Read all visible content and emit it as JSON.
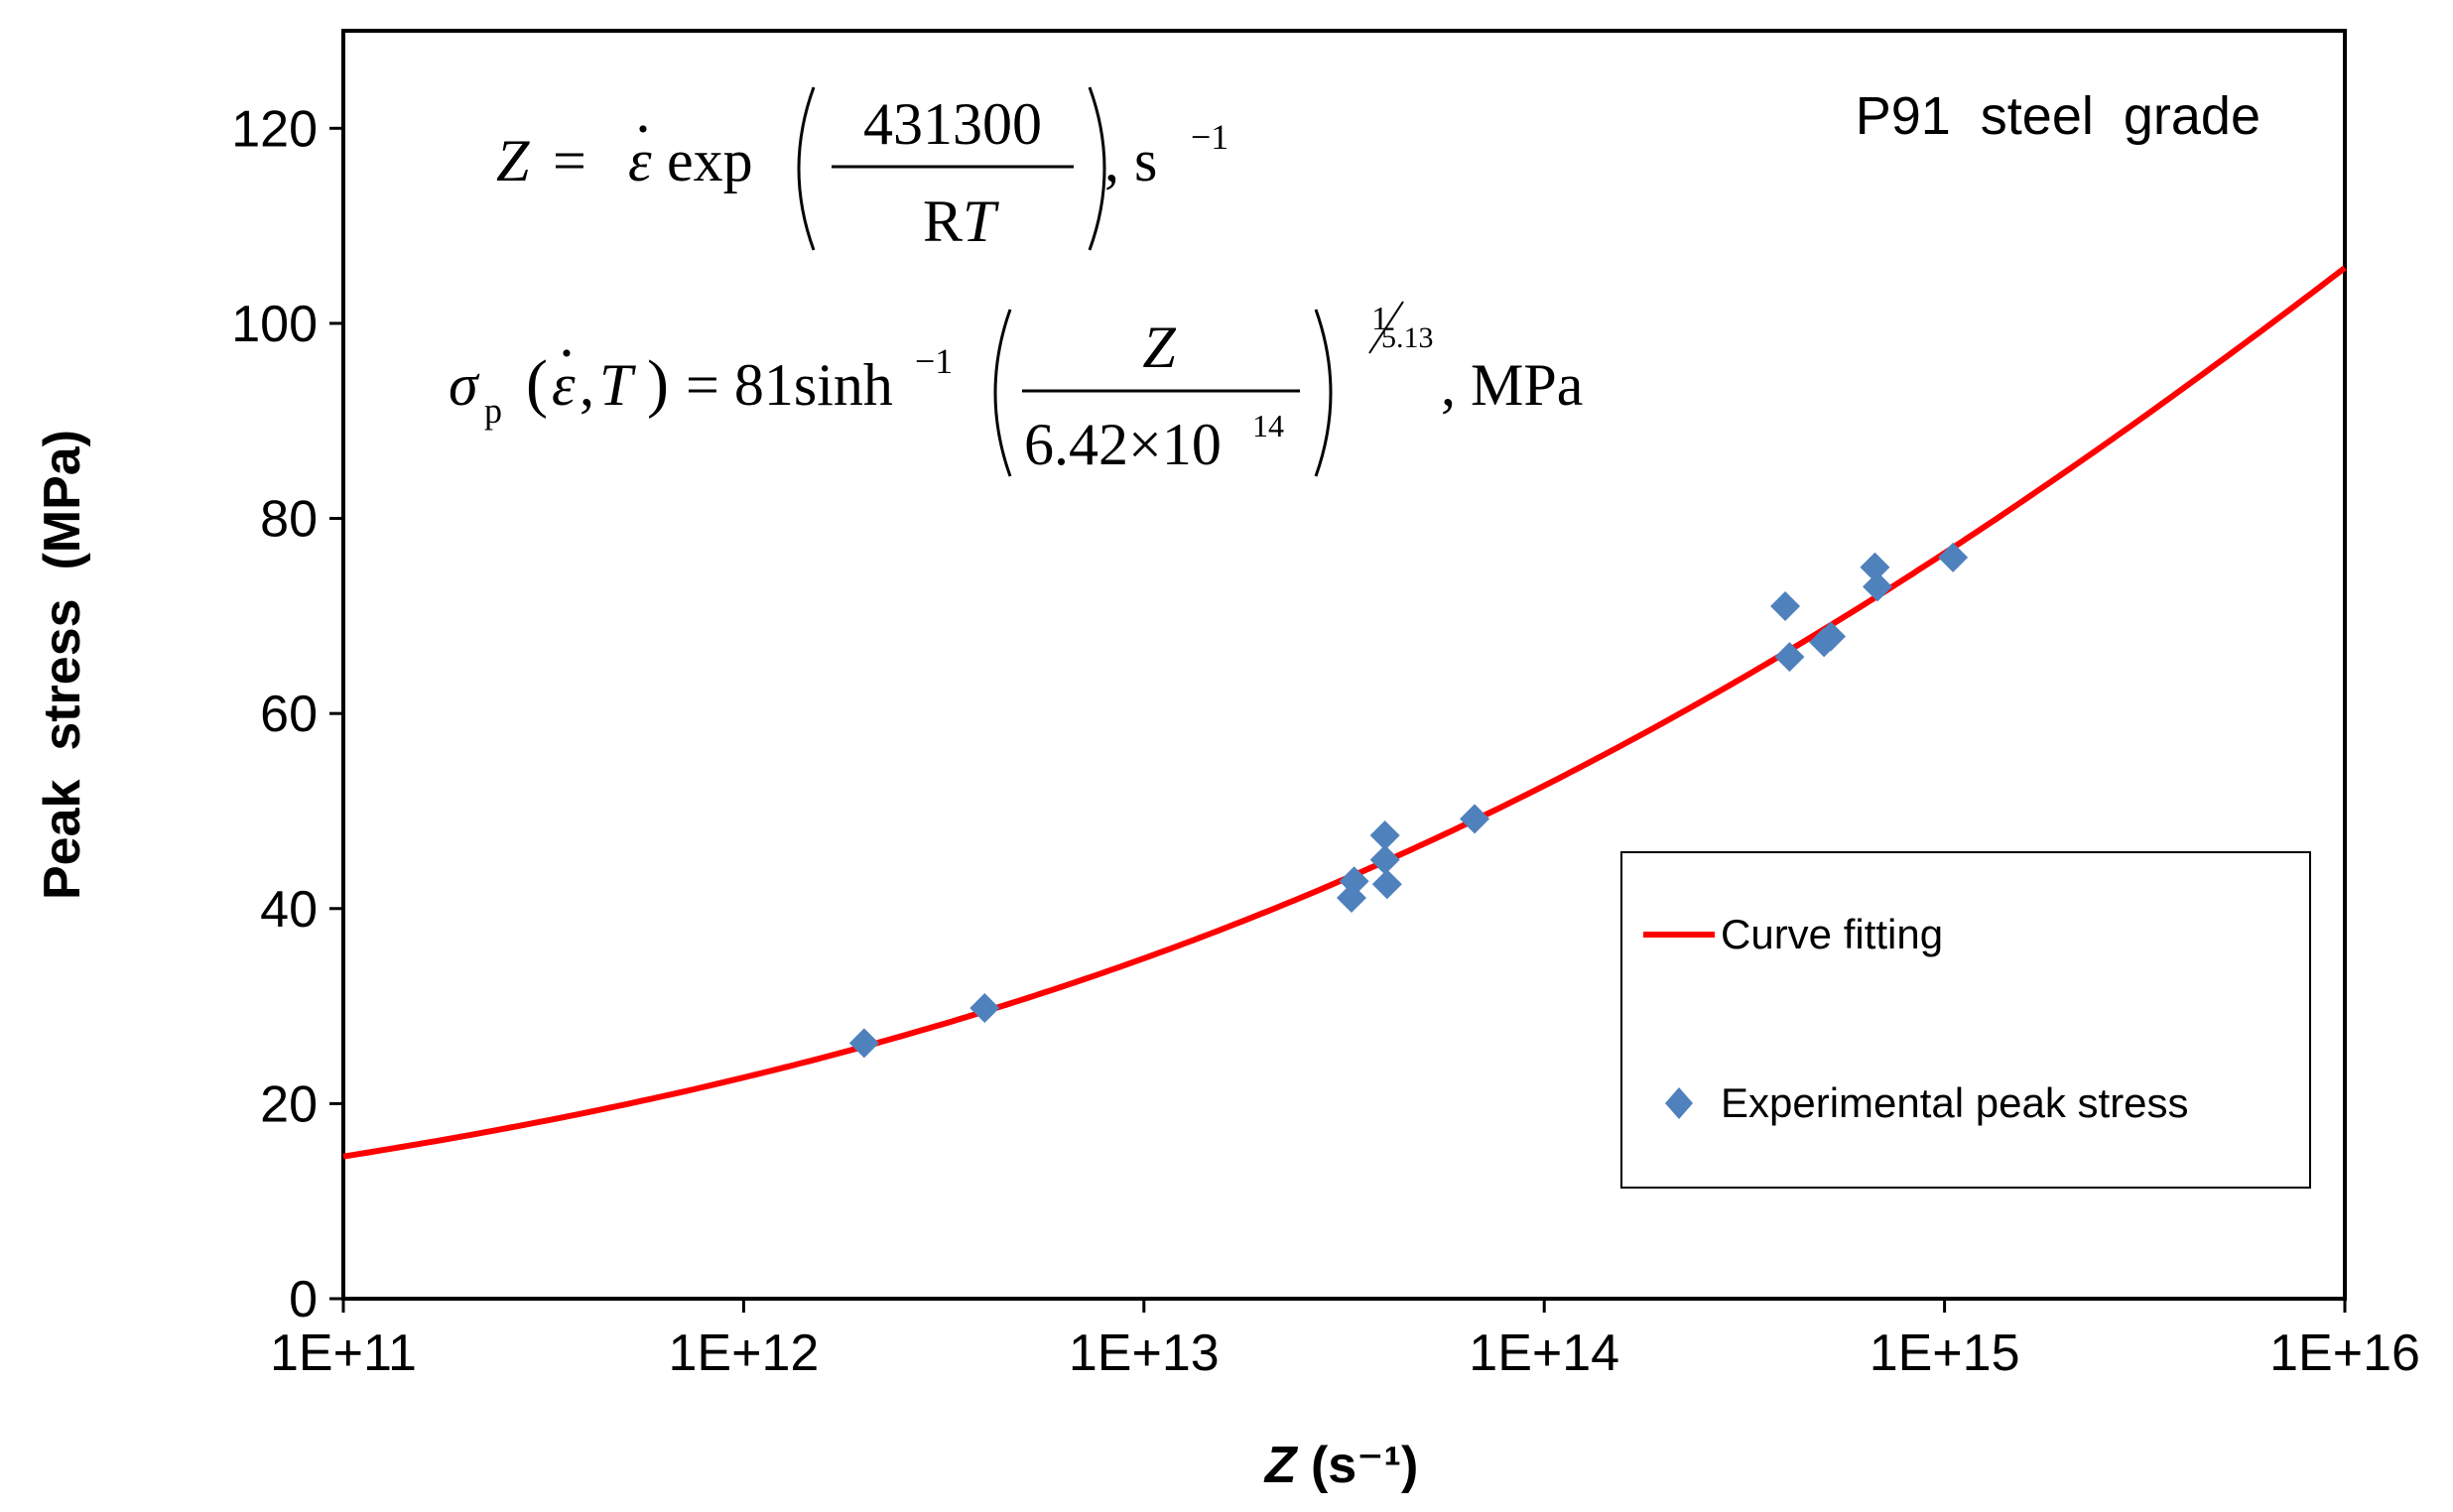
{
  "chart_data": {
    "type": "scatter",
    "title": "P91  steel  grade",
    "xlabel_italic": "Z",
    "xlabel_rest": " (s⁻¹)",
    "ylabel": "Peak  stress  (MPa)",
    "xscale": "log",
    "xlim": [
      100000000000.0,
      1e+16
    ],
    "ylim": [
      0,
      130
    ],
    "x_ticks": [
      100000000000.0,
      1000000000000.0,
      10000000000000.0,
      100000000000000.0,
      1000000000000000.0,
      1e+16
    ],
    "x_tick_labels": [
      "1E+11",
      "1E+12",
      "1E+13",
      "1E+14",
      "1E+15",
      "1E+16"
    ],
    "y_ticks": [
      0,
      20,
      40,
      60,
      80,
      100,
      120
    ],
    "y_tick_labels": [
      "0",
      "20",
      "40",
      "60",
      "80",
      "100",
      "120"
    ],
    "grid": false,
    "legend_position": "bottom-right",
    "colors": {
      "fit": "#ff0000",
      "points": "#4f81bd",
      "axis": "#000000"
    },
    "series": [
      {
        "name": "Curve fitting",
        "kind": "line",
        "model": {
          "A": 81,
          "Z0": 642000000000000.0,
          "n": 5.13
        }
      },
      {
        "name": "Experimental peak stress",
        "kind": "scatter",
        "marker": "diamond",
        "points": [
          {
            "x": 2000000000000.0,
            "y": 26.2
          },
          {
            "x": 4000000000000.0,
            "y": 29.8
          },
          {
            "x": 33000000000000.0,
            "y": 41.1
          },
          {
            "x": 33500000000000.0,
            "y": 42.8
          },
          {
            "x": 40000000000000.0,
            "y": 47.5
          },
          {
            "x": 40000000000000.0,
            "y": 45.0
          },
          {
            "x": 40500000000000.0,
            "y": 42.5
          },
          {
            "x": 67000000000000.0,
            "y": 49.2
          },
          {
            "x": 400000000000000.0,
            "y": 71.0
          },
          {
            "x": 410000000000000.0,
            "y": 65.8
          },
          {
            "x": 500000000000000.0,
            "y": 67.3
          },
          {
            "x": 520000000000000.0,
            "y": 67.9
          },
          {
            "x": 670000000000000.0,
            "y": 75.0
          },
          {
            "x": 680000000000000.0,
            "y": 73.0
          },
          {
            "x": 1050000000000000.0,
            "y": 76.0
          }
        ]
      }
    ],
    "annotations": {
      "eq1": {
        "lhs": "Z",
        "eq": " = ",
        "rate": "ε",
        "dot": "·",
        "func": "exp",
        "numerator": "431300",
        "denom_R": "R",
        "denom_T": "T",
        "comma_unit": ", s",
        "unit_exp": "−1"
      },
      "eq2": {
        "sigma": "σ",
        "sub": "p",
        "args_open": "(",
        "rate": "ε",
        "comma": ",",
        "T": "T",
        "args_close": ")",
        "eq_coef": " = 81sinh",
        "inv": "−1",
        "numerator": "Z",
        "denom": "6.42×10",
        "denom_exp": "14",
        "power_num": "1",
        "power_den": "5.13",
        "unit": ", MPa"
      }
    }
  }
}
